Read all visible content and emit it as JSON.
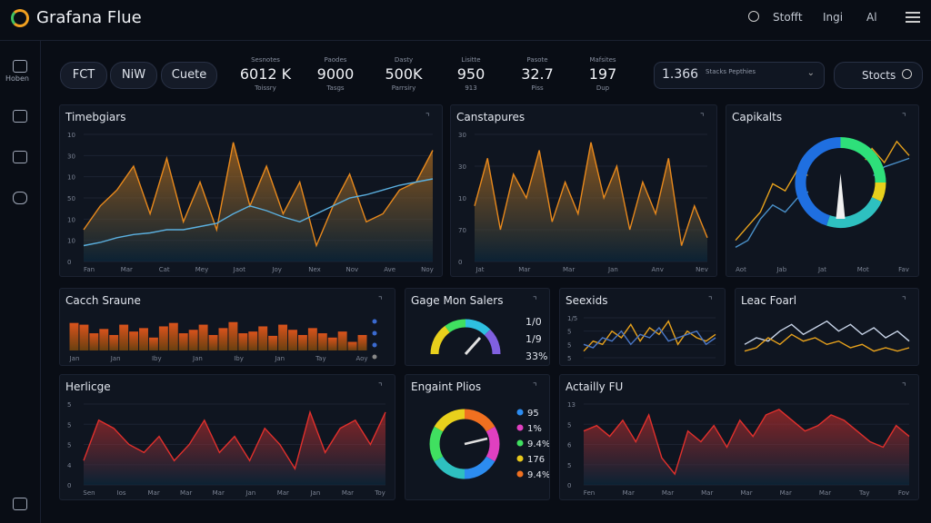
{
  "header": {
    "title": "Grafana Flue",
    "links": [
      "Stofft",
      "Ingi",
      "Al"
    ]
  },
  "sidebar": {
    "label": "Hoben"
  },
  "toolbar": {
    "tabs": [
      "FCT",
      "NiW",
      "Cuete"
    ],
    "stats": [
      {
        "label": "Sesnotes",
        "value": "6012 K",
        "sub": "Toissry"
      },
      {
        "label": "Paodes",
        "value": "9000",
        "sub": "Tasgs"
      },
      {
        "label": "Dasty",
        "value": "500K",
        "sub": "Parrsiry"
      },
      {
        "label": "Lisitte",
        "value": "950",
        "sub": "913"
      },
      {
        "label": "Pasote",
        "value": "32.7",
        "sub": "Piss"
      },
      {
        "label": "Mafsites",
        "value": "197",
        "sub": "Dup"
      }
    ],
    "select": {
      "value": "1.366",
      "label": "Stacks Pepthies"
    },
    "search": "Stocts"
  },
  "panels": [
    {
      "title": "Timebgiars",
      "y_labels": [
        "10",
        "30",
        "10",
        "50",
        "10",
        "10",
        "0"
      ],
      "x_labels": [
        "Fan",
        "Mar",
        "Cat",
        "Mey",
        "Jaot",
        "Joy",
        "Nex",
        "Nov",
        "Ave",
        "Noy"
      ],
      "series": [
        {
          "kind": "area",
          "color": "#e8891c",
          "values": [
            30,
            45,
            55,
            70,
            40,
            75,
            35,
            60,
            30,
            85,
            45,
            70,
            40,
            60,
            20,
            45,
            65,
            35,
            40,
            55,
            60,
            80
          ]
        },
        {
          "kind": "line",
          "color": "#5bb0e0",
          "values": [
            20,
            22,
            25,
            27,
            28,
            30,
            30,
            32,
            34,
            40,
            45,
            42,
            38,
            35,
            40,
            45,
            50,
            52,
            55,
            58,
            60,
            62
          ]
        }
      ]
    },
    {
      "title": "Canstapures",
      "y_labels": [
        "30",
        "30",
        "10",
        "70",
        "0"
      ],
      "x_labels": [
        "Jat",
        "Mar",
        "Mar",
        "Jan",
        "Anv",
        "Nev"
      ],
      "series": [
        {
          "kind": "area",
          "color": "#e8891c",
          "values": [
            55,
            85,
            40,
            75,
            60,
            90,
            45,
            70,
            50,
            95,
            60,
            80,
            40,
            70,
            50,
            85,
            30,
            55,
            35
          ]
        }
      ]
    },
    {
      "title": "Capikalts",
      "y_labels": [],
      "x_labels": [
        "Aot",
        "Jab",
        "Jat",
        "Mot",
        "Fav"
      ],
      "gauge": "ring",
      "series": [
        {
          "kind": "line",
          "color": "#e8a21c",
          "values": [
            20,
            30,
            40,
            60,
            55,
            70,
            65,
            75,
            80,
            60,
            70,
            85,
            75,
            90,
            80
          ]
        },
        {
          "kind": "line",
          "color": "#4a90c8",
          "values": [
            15,
            20,
            35,
            45,
            40,
            50,
            55,
            60,
            58,
            62,
            70,
            65,
            72,
            75,
            78
          ]
        }
      ]
    },
    {
      "title": "Cacch Sraune",
      "y_labels": [],
      "x_labels": [
        "Jan",
        "Jan",
        "Iby",
        "Jan",
        "Iby",
        "Jan",
        "Tay",
        "Aoy"
      ],
      "series": [
        {
          "kind": "bar",
          "color": "#d9531c",
          "values": [
            72,
            70,
            60,
            65,
            58,
            70,
            62,
            66,
            55,
            68,
            72,
            60,
            64,
            70,
            58,
            66,
            73,
            60,
            62,
            68,
            57,
            70,
            64,
            58,
            66,
            60,
            55,
            62,
            50,
            58
          ]
        }
      ]
    },
    {
      "title": "Gage Mon Salers",
      "y_labels": [],
      "x_labels": [],
      "gauge": "half",
      "gauge_labels": [
        "1/0",
        "1/9",
        "33%"
      ],
      "series": []
    },
    {
      "title": "Seexids",
      "y_labels": [
        "1/5",
        "5",
        "5",
        "5"
      ],
      "x_labels": [],
      "series": [
        {
          "kind": "line",
          "color": "#e8a21c",
          "values": [
            30,
            45,
            40,
            60,
            50,
            70,
            45,
            65,
            55,
            75,
            40,
            60,
            50,
            45,
            55
          ]
        },
        {
          "kind": "line",
          "color": "#4a78c8",
          "values": [
            40,
            35,
            50,
            45,
            60,
            40,
            55,
            50,
            65,
            45,
            50,
            55,
            60,
            40,
            50
          ]
        }
      ]
    },
    {
      "title": "Leac Foarl",
      "y_labels": [],
      "x_labels": [],
      "series": [
        {
          "kind": "line",
          "color": "#c8d4e8",
          "values": [
            40,
            50,
            45,
            60,
            70,
            55,
            65,
            75,
            60,
            70,
            55,
            65,
            50,
            60,
            45
          ]
        },
        {
          "kind": "line",
          "color": "#e8a21c",
          "values": [
            30,
            35,
            50,
            40,
            55,
            45,
            50,
            40,
            45,
            35,
            40,
            30,
            35,
            30,
            35
          ]
        }
      ]
    },
    {
      "title": "Herlicge",
      "y_labels": [
        "5",
        "5",
        "5",
        "4",
        "0"
      ],
      "x_labels": [
        "Sen",
        "Ios",
        "Mar",
        "Mar",
        "Mar",
        "Jan",
        "Mar",
        "Jan",
        "Mar",
        "Toy"
      ],
      "series": [
        {
          "kind": "area",
          "color": "#e0302c",
          "values": [
            50,
            75,
            70,
            60,
            55,
            65,
            50,
            60,
            75,
            55,
            65,
            50,
            70,
            60,
            45,
            80,
            55,
            70,
            75,
            60,
            80
          ]
        }
      ]
    },
    {
      "title": "Engaint Plios",
      "y_labels": [],
      "x_labels": [],
      "gauge": "donut",
      "legend": [
        {
          "color": "#2c8cf0",
          "label": "95"
        },
        {
          "color": "#e040c0",
          "label": "1%"
        },
        {
          "color": "#40e060",
          "label": "9.4%"
        },
        {
          "color": "#e8c81c",
          "label": "176"
        },
        {
          "color": "#f07020",
          "label": "9.4%"
        }
      ],
      "series": []
    },
    {
      "title": "Actailly FU",
      "y_labels": [
        "13",
        "5",
        "6",
        "5",
        "0"
      ],
      "x_labels": [
        "Fen",
        "Mar",
        "Mar",
        "Mar",
        "Mar",
        "Mar",
        "Mar",
        "Tay",
        "Fov"
      ],
      "series": [
        {
          "kind": "area",
          "color": "#e0302c",
          "values": [
            70,
            75,
            65,
            80,
            60,
            85,
            45,
            30,
            70,
            60,
            75,
            55,
            80,
            65,
            85,
            90,
            80,
            70,
            75,
            85,
            80,
            70,
            60,
            55,
            75,
            65
          ]
        }
      ]
    }
  ]
}
